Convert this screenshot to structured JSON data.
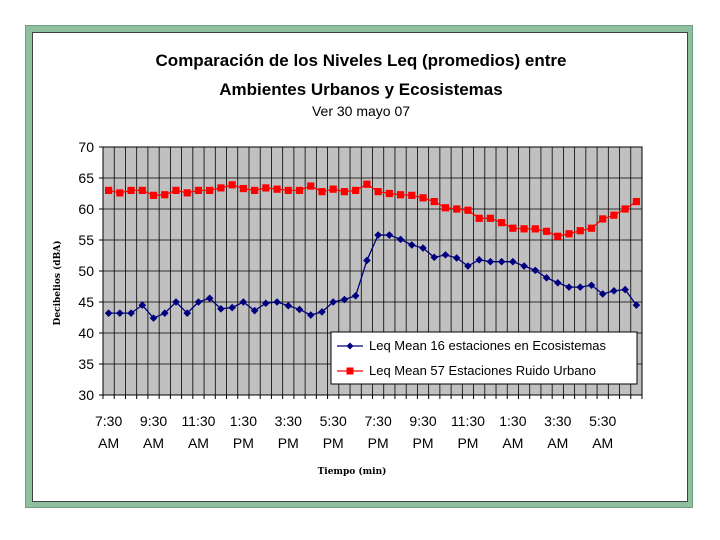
{
  "chart_data": {
    "type": "line",
    "title_line1": "Comparación de los Niveles Leq (promedios) entre",
    "title_line2": "Ambientes Urbanos y Ecosistemas",
    "subtitle": "Ver 30 mayo 07",
    "xlabel": "Tiempo (min)",
    "ylabel": "Decibelios (dBA)",
    "ylim": [
      30,
      70
    ],
    "yticks": [
      30,
      35,
      40,
      45,
      50,
      55,
      60,
      65,
      70
    ],
    "xtick_labels": [
      [
        "7:30",
        "AM"
      ],
      [
        "9:30",
        "AM"
      ],
      [
        "11:30",
        "AM"
      ],
      [
        "1:30",
        "PM"
      ],
      [
        "3:30",
        "PM"
      ],
      [
        "5:30",
        "PM"
      ],
      [
        "7:30",
        "PM"
      ],
      [
        "9:30",
        "PM"
      ],
      [
        "11:30",
        "PM"
      ],
      [
        "1:30",
        "AM"
      ],
      [
        "3:30",
        "AM"
      ],
      [
        "5:30",
        "AM"
      ]
    ],
    "grid": "vertical",
    "legend_position": "bottom-right",
    "colors": {
      "plot_bg": "#c0c0c0",
      "frame": "#8fbf9f"
    },
    "series": [
      {
        "name": "Leq Mean 16 estaciones en Ecosistemas",
        "color": "#00007f",
        "marker": "diamond",
        "values": [
          43.2,
          43.2,
          43.2,
          44.5,
          42.4,
          43.2,
          45.0,
          43.2,
          45.0,
          45.6,
          43.9,
          44.1,
          45.0,
          43.6,
          44.8,
          45.0,
          44.4,
          43.8,
          42.9,
          43.4,
          45.0,
          45.4,
          46.0,
          51.7,
          55.8,
          55.8,
          55.1,
          54.2,
          53.7,
          52.2,
          52.6,
          52.1,
          50.8,
          51.8,
          51.5,
          51.5,
          51.5,
          50.8,
          50.1,
          48.9,
          48.1,
          47.4,
          47.4,
          47.7,
          46.3,
          46.8,
          47.0,
          44.5
        ]
      },
      {
        "name": "Leq Mean 57 Estaciones Ruido Urbano",
        "color": "#ff0000",
        "marker": "square",
        "values": [
          63.0,
          62.6,
          63.0,
          63.0,
          62.2,
          62.3,
          63.0,
          62.6,
          63.0,
          63.0,
          63.4,
          63.9,
          63.3,
          63.0,
          63.4,
          63.2,
          63.0,
          63.0,
          63.7,
          62.8,
          63.2,
          62.8,
          63.0,
          64.0,
          62.8,
          62.5,
          62.3,
          62.2,
          61.8,
          61.2,
          60.2,
          60.0,
          59.8,
          58.5,
          58.5,
          57.8,
          56.9,
          56.8,
          56.8,
          56.4,
          55.6,
          56.0,
          56.5,
          56.9,
          58.4,
          59.0,
          60.0,
          61.2
        ]
      }
    ]
  }
}
